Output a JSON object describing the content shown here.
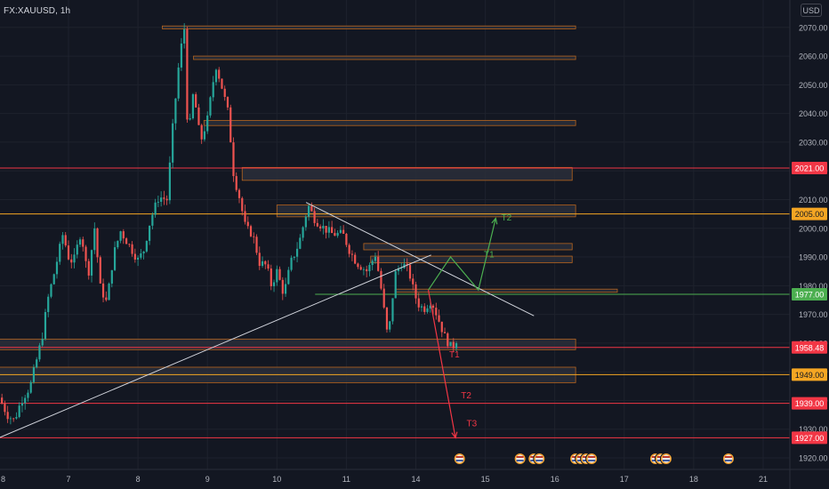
{
  "header": {
    "symbol": "FX:XAUUSD, 1h",
    "currency": "USD"
  },
  "colors": {
    "background": "#131722",
    "bull": "#26a69a",
    "bear": "#ef5350",
    "zone_fill": "#2a2e39",
    "zone_border": "#b8651e",
    "red_level": "#f23645",
    "yellow_level": "#f5a623",
    "green_level": "#4caf50",
    "trendline": "#d1d4dc"
  },
  "chart_data": {
    "type": "candlestick",
    "symbol": "XAUUSD",
    "interval": "1h",
    "ylim": [
      1915,
      2075
    ],
    "y_ticks": [
      1920,
      1930,
      1940,
      1950,
      1960,
      1970,
      1980,
      1990,
      2000,
      2010,
      2020,
      2030,
      2040,
      2050,
      2060,
      2070
    ],
    "y_tick_labels": [
      "1920.00",
      "1930.00",
      "1940.00",
      "1950.00",
      "1960.00",
      "1970.00",
      "1980.00",
      "1990.00",
      "2000.00",
      "2010.00",
      "2020.00",
      "2030.00",
      "2040.00",
      "2050.00",
      "2060.00",
      "2070.00"
    ],
    "x_ticks": [
      {
        "label": "7",
        "day": 7
      },
      {
        "label": "8",
        "day": 8
      },
      {
        "label": "9",
        "day": 9
      },
      {
        "label": "10",
        "day": 10
      },
      {
        "label": "11",
        "day": 11
      },
      {
        "label": "14",
        "day": 12
      },
      {
        "label": "15",
        "day": 13
      },
      {
        "label": "16",
        "day": 14
      },
      {
        "label": "17",
        "day": 15
      },
      {
        "label": "18",
        "day": 16
      },
      {
        "label": "21",
        "day": 17
      }
    ],
    "left_edge_label": "8",
    "price_path": [
      [
        6.0,
        1941
      ],
      [
        6.12,
        1935
      ],
      [
        6.22,
        1933
      ],
      [
        6.32,
        1940
      ],
      [
        6.45,
        1945
      ],
      [
        6.55,
        1955
      ],
      [
        6.62,
        1962
      ],
      [
        6.7,
        1975
      ],
      [
        6.8,
        1985
      ],
      [
        6.92,
        1998
      ],
      [
        7.0,
        1990
      ],
      [
        7.07,
        1988
      ],
      [
        7.18,
        1999
      ],
      [
        7.28,
        1983
      ],
      [
        7.38,
        2001
      ],
      [
        7.45,
        1980
      ],
      [
        7.55,
        1974
      ],
      [
        7.65,
        1991
      ],
      [
        7.75,
        1999
      ],
      [
        7.85,
        1995
      ],
      [
        8.0,
        1989
      ],
      [
        8.08,
        1992
      ],
      [
        8.18,
        2003
      ],
      [
        8.3,
        2011
      ],
      [
        8.42,
        2010
      ],
      [
        8.5,
        2035
      ],
      [
        8.6,
        2060
      ],
      [
        8.67,
        2070
      ],
      [
        8.72,
        2030
      ],
      [
        8.8,
        2048
      ],
      [
        8.9,
        2030
      ],
      [
        9.0,
        2038
      ],
      [
        9.12,
        2057
      ],
      [
        9.2,
        2050
      ],
      [
        9.3,
        2040
      ],
      [
        9.38,
        2018
      ],
      [
        9.45,
        2012
      ],
      [
        9.55,
        2000
      ],
      [
        9.65,
        1998
      ],
      [
        9.75,
        1988
      ],
      [
        9.85,
        1987
      ],
      [
        9.92,
        1980
      ],
      [
        10.0,
        1985
      ],
      [
        10.1,
        1977
      ],
      [
        10.2,
        1988
      ],
      [
        10.32,
        1995
      ],
      [
        10.45,
        2008
      ],
      [
        10.55,
        2003
      ],
      [
        10.68,
        2000
      ],
      [
        10.8,
        1998
      ],
      [
        10.95,
        1998
      ],
      [
        11.05,
        1992
      ],
      [
        11.15,
        1988
      ],
      [
        11.3,
        1985
      ],
      [
        11.42,
        1991
      ],
      [
        11.5,
        1979
      ],
      [
        11.6,
        1961
      ],
      [
        11.7,
        1984
      ],
      [
        11.8,
        1988
      ],
      [
        11.9,
        1985
      ],
      [
        11.98,
        1977
      ],
      [
        12.05,
        1973
      ],
      [
        12.12,
        1972
      ],
      [
        12.22,
        1975
      ],
      [
        12.3,
        1970
      ],
      [
        12.42,
        1962
      ],
      [
        12.52,
        1958
      ],
      [
        12.6,
        1962
      ]
    ],
    "zones": [
      {
        "from_day": 8.35,
        "to_day": 14.3,
        "low": 2069.5,
        "high": 2070.5
      },
      {
        "from_day": 8.8,
        "to_day": 14.3,
        "low": 2058.8,
        "high": 2060.0
      },
      {
        "from_day": 8.95,
        "to_day": 14.3,
        "low": 2035.8,
        "high": 2037.6
      },
      {
        "from_day": 9.5,
        "to_day": 14.25,
        "low": 2016.7,
        "high": 2021.2
      },
      {
        "from_day": 10.0,
        "to_day": 14.3,
        "low": 2004.0,
        "high": 2008.1
      },
      {
        "from_day": 11.25,
        "to_day": 14.25,
        "low": 1992.5,
        "high": 1994.7
      },
      {
        "from_day": 11.35,
        "to_day": 14.25,
        "low": 1988.0,
        "high": 1990.3
      },
      {
        "from_day": 11.7,
        "to_day": 14.9,
        "low": 1977.7,
        "high": 1978.8
      },
      {
        "from_day": 5.75,
        "to_day": 14.3,
        "low": 1957.7,
        "high": 1961.4
      },
      {
        "from_day": 5.5,
        "to_day": 14.3,
        "low": 1946.2,
        "high": 1951.6
      }
    ],
    "levels": [
      {
        "label": "2021.00",
        "value": 2021.0,
        "color": "#f23645",
        "text_color": "#ffffff"
      },
      {
        "label": "2005.00",
        "value": 2005.0,
        "color": "#f5a623",
        "text_color": "#131722"
      },
      {
        "label": "1977.00",
        "value": 1977.0,
        "color": "#4caf50",
        "text_color": "#ffffff",
        "from_day": 10.55
      },
      {
        "label": "1958.48",
        "value": 1958.48,
        "color": "#f23645",
        "text_color": "#ffffff"
      },
      {
        "label": "1949.00",
        "value": 1949.0,
        "color": "#f5a623",
        "text_color": "#131722"
      },
      {
        "label": "1939.00",
        "value": 1939.0,
        "color": "#f23645",
        "text_color": "#ffffff"
      },
      {
        "label": "1927.00",
        "value": 1927.0,
        "color": "#f23645",
        "text_color": "#ffffff"
      }
    ],
    "trendlines": [
      {
        "from": [
          6.0,
          1927.0
        ],
        "to": [
          12.22,
          1990.7
        ]
      },
      {
        "from": [
          10.42,
          2009.0
        ],
        "to": [
          13.7,
          1969.5
        ]
      }
    ],
    "bull_projection": {
      "points": [
        [
          12.18,
          1978.5
        ],
        [
          12.5,
          1990.0
        ],
        [
          12.9,
          1978.5
        ],
        [
          13.15,
          2003.5
        ]
      ],
      "labels": [
        {
          "text": "T1",
          "at": [
            12.98,
            1989.8
          ]
        },
        {
          "text": "T2",
          "at": [
            13.23,
            2002.7
          ]
        }
      ]
    },
    "bear_projection": {
      "points": [
        [
          12.18,
          1978.5
        ],
        [
          12.57,
          1927.0
        ]
      ],
      "labels": [
        {
          "text": "T1",
          "at": [
            12.48,
            1955.0
          ]
        },
        {
          "text": "T2",
          "at": [
            12.65,
            1940.7
          ]
        },
        {
          "text": "T3",
          "at": [
            12.73,
            1931.0
          ]
        }
      ]
    },
    "event_flags": [
      {
        "day": 12.63,
        "count": 1
      },
      {
        "day": 13.5,
        "count": 1
      },
      {
        "day": 13.7,
        "count": 2
      },
      {
        "day": 14.3,
        "count": 4
      },
      {
        "day": 15.45,
        "count": 3
      },
      {
        "day": 16.5,
        "count": 1
      }
    ]
  }
}
